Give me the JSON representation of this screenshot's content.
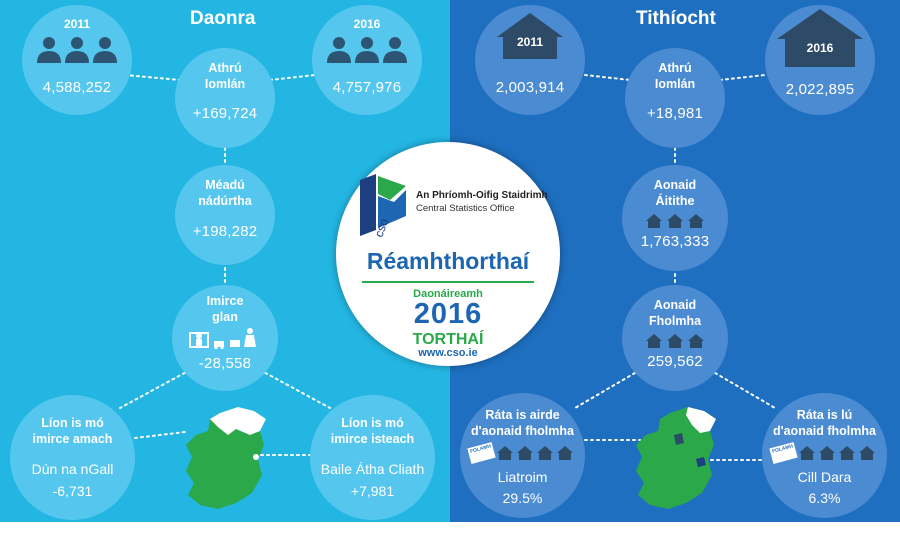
{
  "colors": {
    "left_bg": "#23b6e3",
    "right_bg": "#1e6fc0",
    "left_circle": "#55c7ee",
    "right_circle": "#4a8bd2",
    "map_green": "#2aa84a"
  },
  "left": {
    "title": "Daonra",
    "pop_2011": {
      "year": "2011",
      "value": "4,588,252",
      "icon": "people-icon"
    },
    "pop_2016": {
      "year": "2016",
      "value": "4,757,976",
      "icon": "people-icon"
    },
    "total_change": {
      "label1": "Athrú",
      "label2": "Iomlán",
      "value": "+169,724"
    },
    "natural_increase": {
      "label1": "Méadú",
      "label2": "nádúrtha",
      "value": "+198,282"
    },
    "net_migration": {
      "label1": "Imirce",
      "label2": "glan",
      "value": "-28,558",
      "icon": "migration-icon"
    },
    "most_out": {
      "label1": "Líon is mó",
      "label2": "imirce amach",
      "place": "Dún na nGall",
      "value": "-6,731"
    },
    "most_in": {
      "label1": "Líon is mó",
      "label2": "imirce isteach",
      "place": "Baile Átha Cliath",
      "value": "+7,981"
    },
    "map_icon": "ireland-map-icon"
  },
  "right": {
    "title": "Tithíocht",
    "houses_2011": {
      "year": "2011",
      "value": "2,003,914",
      "icon": "house-icon"
    },
    "houses_2016": {
      "year": "2016",
      "value": "2,022,895",
      "icon": "house-icon"
    },
    "total_change": {
      "label1": "Athrú",
      "label2": "Iomlán",
      "value": "+18,981"
    },
    "occupied": {
      "label1": "Aonaid",
      "label2": "Áitithe",
      "value": "1,763,333",
      "icon": "houses-icon"
    },
    "vacant": {
      "label1": "Aonaid",
      "label2": "Fholmha",
      "value": "259,562",
      "icon": "houses-icon"
    },
    "highest_vacancy": {
      "label1": "Ráta is airde",
      "label2": "d'aonaid fholmha",
      "place": "Liatroim",
      "value": "29.5%",
      "tag": "FOLAMH"
    },
    "lowest_vacancy": {
      "label1": "Ráta is lú",
      "label2": "d'aonaid fholmha",
      "place": "Cill Dara",
      "value": "6.3%",
      "tag": "FOLAMH"
    },
    "map_icon": "ireland-map-icon"
  },
  "center": {
    "org_ga": "An Phríomh-Oifig Staidrimh",
    "org_en": "Central Statistics Office",
    "heading": "Réamhthorthaí",
    "census_label": "Daonáireamh",
    "census_year": "2016",
    "results": "TORTHAÍ",
    "url": "www.cso.ie"
  }
}
